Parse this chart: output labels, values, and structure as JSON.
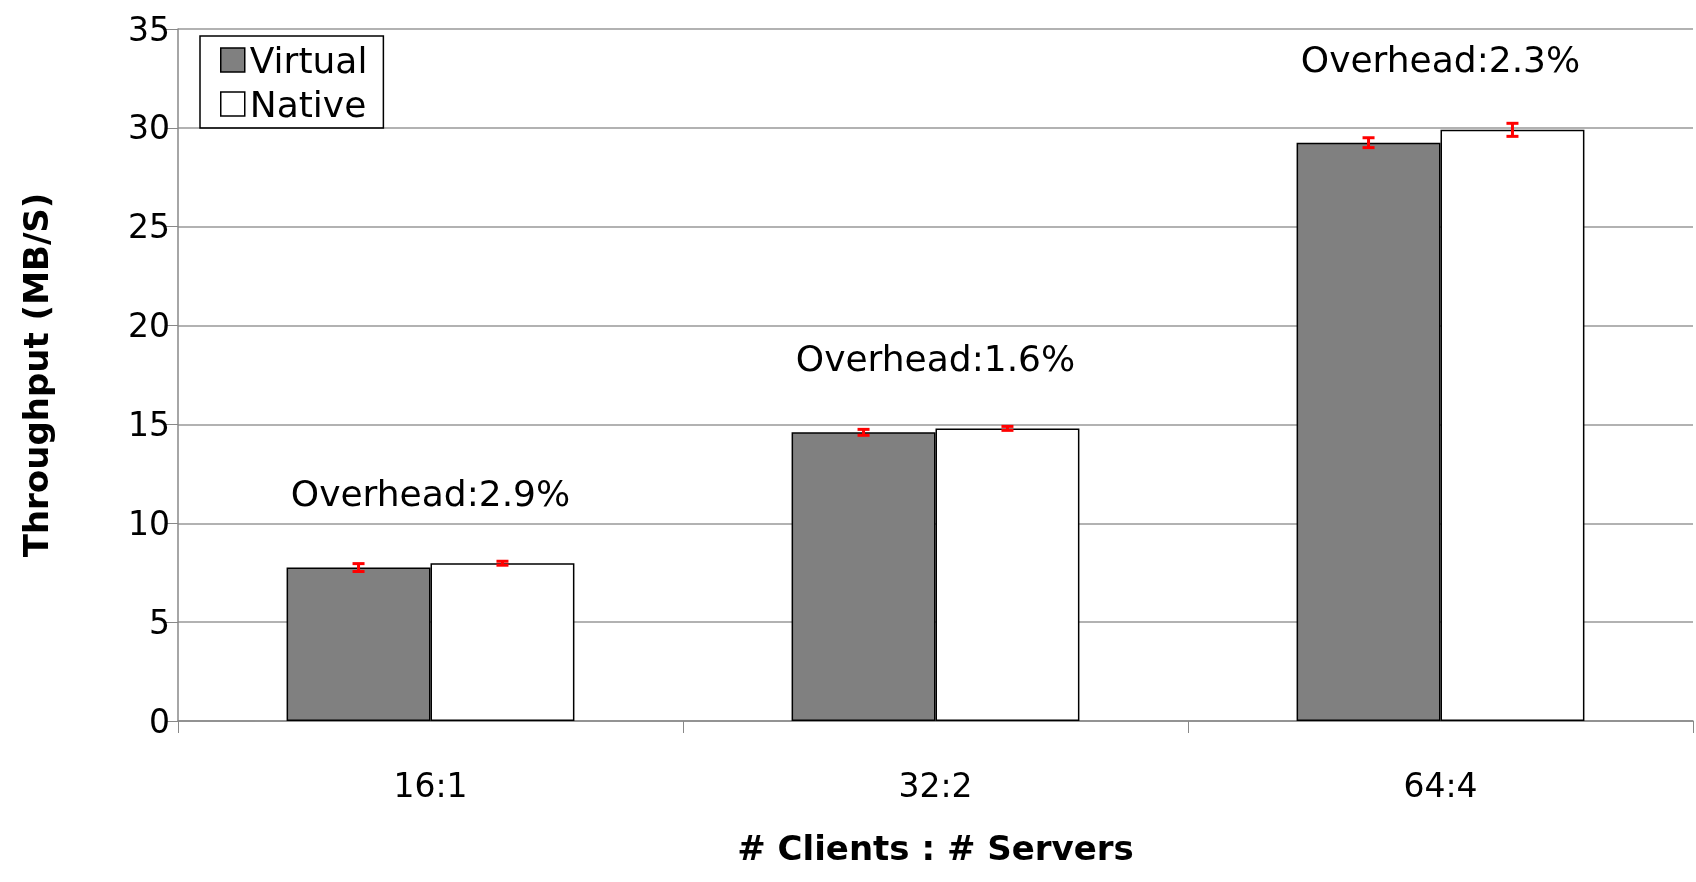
{
  "chart_data": {
    "type": "bar",
    "xlabel": "# Clients : # Servers",
    "ylabel": "Throughput (MB/S)",
    "categories": [
      "16:1",
      "32:2",
      "64:4"
    ],
    "series": [
      {
        "name": "Virtual",
        "color": "#808080",
        "values": [
          7.76,
          14.6,
          29.25
        ],
        "errors": [
          0.2,
          0.15,
          0.25
        ]
      },
      {
        "name": "Native",
        "color": "#ffffff",
        "values": [
          7.98,
          14.8,
          29.9
        ],
        "errors": [
          0.1,
          0.1,
          0.33
        ]
      }
    ],
    "ylim": [
      0,
      35
    ],
    "yticks": [
      0,
      5,
      10,
      15,
      20,
      25,
      30,
      35
    ],
    "grid": "y",
    "legend": "top left",
    "annotations": [
      "Overhead:2.9%",
      "Overhead:1.6%",
      "Overhead:2.3%"
    ]
  }
}
